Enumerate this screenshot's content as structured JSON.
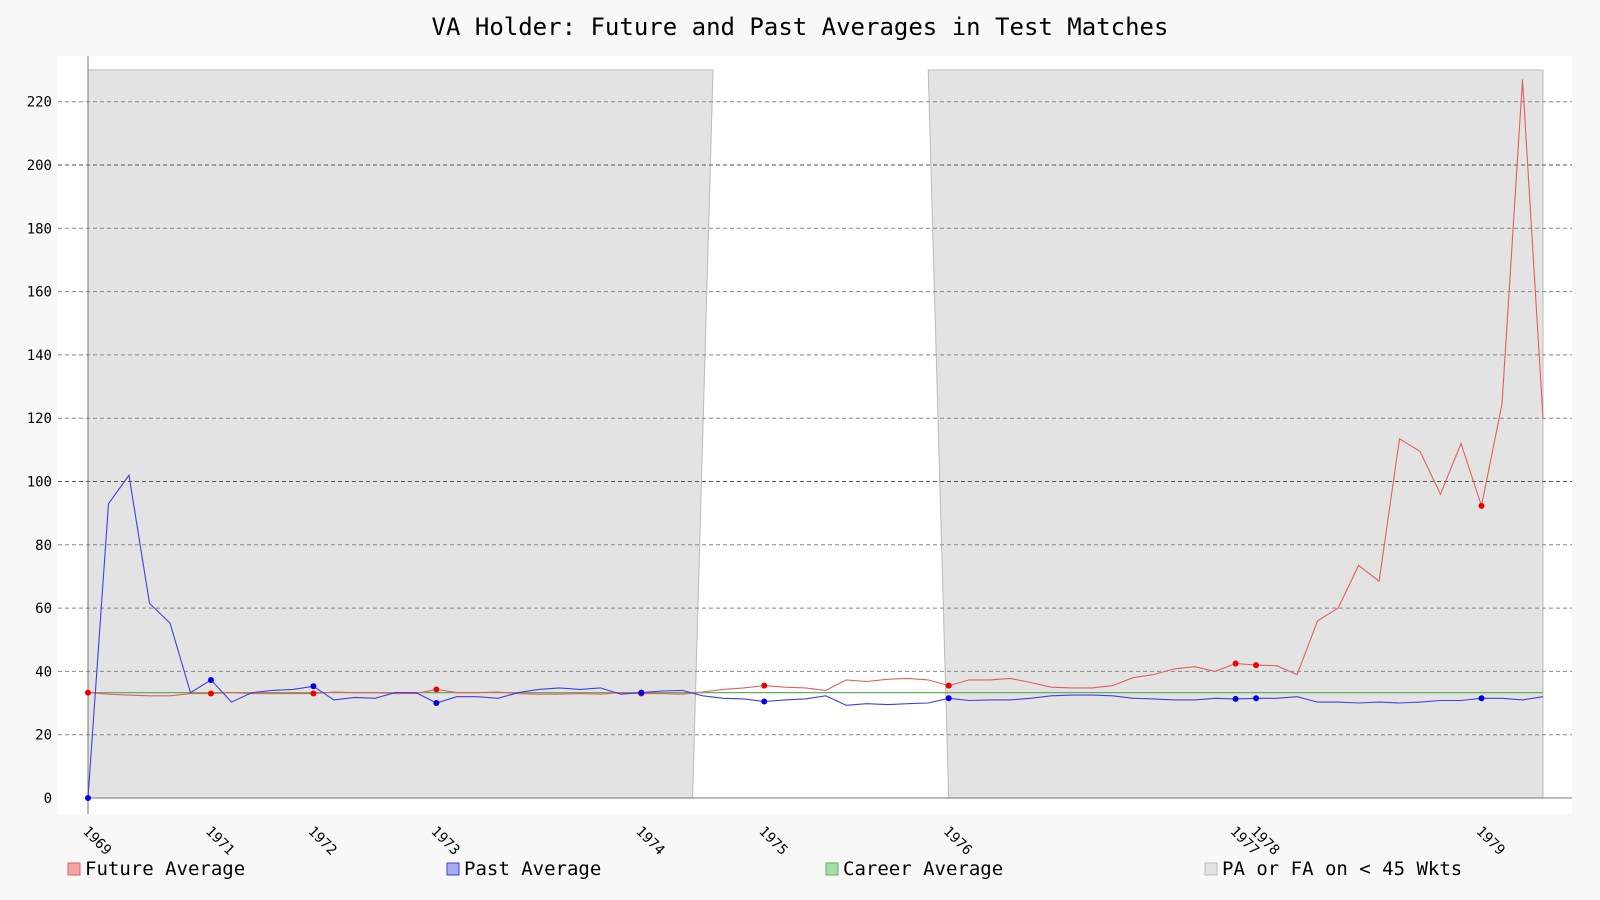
{
  "chart_data": {
    "type": "line",
    "title": "VA Holder: Future and Past Averages in Test Matches",
    "xlabel": "",
    "ylabel": "",
    "ylim": [
      0,
      230
    ],
    "y_ticks": [
      0,
      20,
      40,
      60,
      80,
      100,
      120,
      140,
      160,
      180,
      200,
      220
    ],
    "x_tick_labels": [
      "1969",
      "1971",
      "1972",
      "1973",
      "1974",
      "1975",
      "1976",
      "1977",
      "1978",
      "1979"
    ],
    "x_tick_match_index": [
      0,
      6,
      11,
      17,
      27,
      33,
      42,
      56,
      57,
      68
    ],
    "grid": true,
    "legend_position": "bottom",
    "series": [
      {
        "name": "Future Average",
        "color": "#e06060",
        "values": [
          33.3,
          32.8,
          32.5,
          32.3,
          32.3,
          33.0,
          33.0,
          33.3,
          33.0,
          33.0,
          33.0,
          33.0,
          33.5,
          33.3,
          33.3,
          33.0,
          33.0,
          34.3,
          33.3,
          33.3,
          33.5,
          33.0,
          32.8,
          32.8,
          33.0,
          32.8,
          33.3,
          33.0,
          33.0,
          32.8,
          33.5,
          34.3,
          34.8,
          35.5,
          35.0,
          34.8,
          34.0,
          37.3,
          36.8,
          37.5,
          37.8,
          37.3,
          35.5,
          37.3,
          37.3,
          37.8,
          36.5,
          35.0,
          34.8,
          34.8,
          35.5,
          38.0,
          39.0,
          40.8,
          41.5,
          40.0,
          42.5,
          42.0,
          41.8,
          39.0,
          56.0,
          60.0,
          73.5,
          68.5,
          113.5,
          109.5,
          96.0,
          112.0,
          92.3,
          124.5,
          227.0,
          120.0
        ]
      },
      {
        "name": "Past Average",
        "color": "#4040e0",
        "values": [
          0.0,
          93.0,
          102.0,
          61.5,
          55.3,
          33.3,
          37.3,
          30.3,
          33.3,
          34.0,
          34.3,
          35.3,
          31.0,
          31.8,
          31.5,
          33.3,
          33.3,
          30.0,
          32.0,
          32.0,
          31.5,
          33.3,
          34.3,
          34.8,
          34.3,
          34.8,
          32.8,
          33.3,
          33.8,
          34.0,
          32.3,
          31.5,
          31.3,
          30.5,
          31.0,
          31.3,
          32.3,
          29.3,
          29.8,
          29.5,
          29.8,
          30.0,
          31.5,
          30.8,
          31.0,
          31.0,
          31.5,
          32.3,
          32.5,
          32.5,
          32.3,
          31.5,
          31.3,
          31.0,
          31.0,
          31.5,
          31.3,
          31.5,
          31.5,
          32.0,
          30.3,
          30.3,
          30.0,
          30.3,
          30.0,
          30.3,
          30.8,
          30.8,
          31.5,
          31.5,
          31.0,
          32.0
        ]
      },
      {
        "name": "Career Average",
        "color": "#60b060",
        "values": [
          33.3
        ]
      },
      {
        "name": "PA or FA on < 45 Wkts",
        "color": "#e3e3e3"
      }
    ]
  },
  "legend": [
    {
      "label": "Future Average",
      "swatch_fill": "#f4a3a3",
      "swatch_stroke": "#e06060"
    },
    {
      "label": "Past Average",
      "swatch_fill": "#a9a9f4",
      "swatch_stroke": "#4040e0"
    },
    {
      "label": "Career Average",
      "swatch_fill": "#a8dca8",
      "swatch_stroke": "#60b060"
    },
    {
      "label": "PA or FA on < 45 Wkts",
      "swatch_fill": "#e3e3e3",
      "swatch_stroke": "#bbbbbb"
    }
  ]
}
